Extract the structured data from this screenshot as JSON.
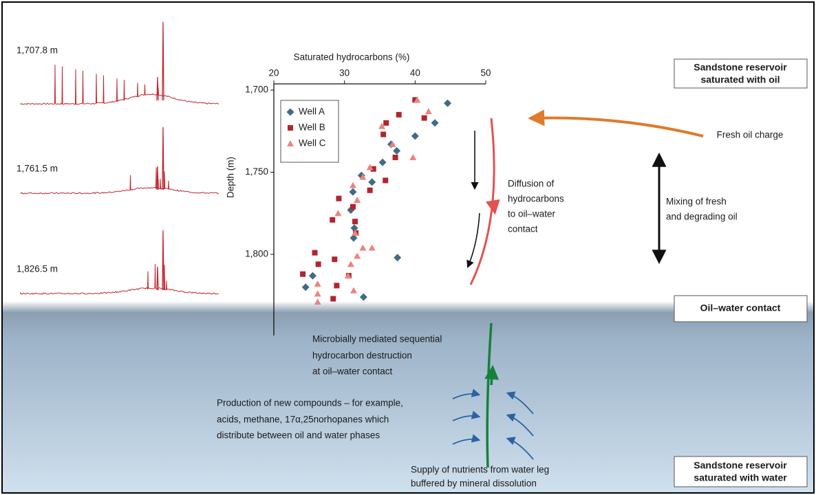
{
  "chart_data": {
    "type": "scatter",
    "x_label": "Saturated hydrocarbons (%)",
    "y_label": "Depth (m)",
    "xlim": [
      20,
      50
    ],
    "xticks": [
      20,
      30,
      40,
      50
    ],
    "ylim": [
      1700,
      1850
    ],
    "yticks": [
      {
        "value": 1700,
        "label": "1,700"
      },
      {
        "value": 1750,
        "label": "1,750"
      },
      {
        "value": 1800,
        "label": "1,800"
      }
    ],
    "y_inverted": true,
    "x_axis_top": true,
    "series": [
      {
        "name": "Well A",
        "color": "#3f6c86",
        "marker": "diamond",
        "x": [
          44.6,
          42.8,
          40.0,
          37.4,
          36.6,
          35.4,
          32.4,
          33.9,
          31.2,
          30.9,
          31.4,
          31.3,
          37.5,
          25.5,
          24.5,
          32.7
        ],
        "values": [
          1708,
          1720,
          1728,
          1737,
          1733,
          1744,
          1752,
          1756,
          1762,
          1773,
          1784,
          1790,
          1802,
          1813,
          1820,
          1826
        ]
      },
      {
        "name": "Well B",
        "color": "#b3242f",
        "marker": "square",
        "x": [
          40.0,
          37.7,
          41.3,
          35.9,
          35.5,
          37.2,
          34.1,
          35.8,
          29.2,
          33.6,
          31.2,
          31.5,
          28.3,
          31.6,
          25.8,
          28.6,
          26.3,
          24.1,
          30.6,
          28.9,
          28.4
        ],
        "values": [
          1706,
          1715,
          1717,
          1720,
          1727,
          1741,
          1748,
          1755,
          1766,
          1761,
          1771,
          1780,
          1779,
          1787,
          1799,
          1803,
          1806,
          1812,
          1813,
          1819,
          1827
        ]
      },
      {
        "name": "Well C",
        "color": "#ea857e",
        "marker": "triangle",
        "x": [
          40.3,
          41.9,
          35.3,
          36.8,
          39.7,
          33.6,
          32.6,
          29.1,
          31.2,
          31.8,
          31.5,
          32.6,
          33.9,
          31.8,
          30.9,
          30.5,
          26.2,
          31.3,
          26.2,
          26.2
        ],
        "values": [
          1706,
          1713,
          1722,
          1733,
          1741,
          1747,
          1753,
          1775,
          1758,
          1767,
          1787,
          1796,
          1796,
          1801,
          1806,
          1813,
          1818,
          1822,
          1824,
          1829
        ]
      }
    ]
  },
  "diagram": {
    "spectra": [
      "1,707.8 m",
      "1,761.5 m",
      "1,826.5 m"
    ],
    "boxes": [
      [
        "Sandstone reservoir",
        "saturated with oil"
      ],
      [
        "Oil–water contact"
      ],
      [
        "Sandstone reservoir",
        "saturated with water"
      ]
    ],
    "fresh_charge": "Fresh oil charge",
    "mixing": [
      "Mixing of fresh",
      "and degrading oil"
    ],
    "diffusion": [
      "Diffusion of",
      "hydrocarbons",
      "to oil–water",
      "contact"
    ],
    "microbial": [
      "Microbially mediated sequential",
      "hydrocarbon destruction",
      "at oil–water contact"
    ],
    "production": [
      "Production of new compounds – for example,",
      "acids, methane, 17α,25norhopanes which",
      "distribute between oil and water phases"
    ],
    "supply": [
      "Supply of  nutrients from water leg",
      "buffered by mineral dissolution"
    ]
  }
}
